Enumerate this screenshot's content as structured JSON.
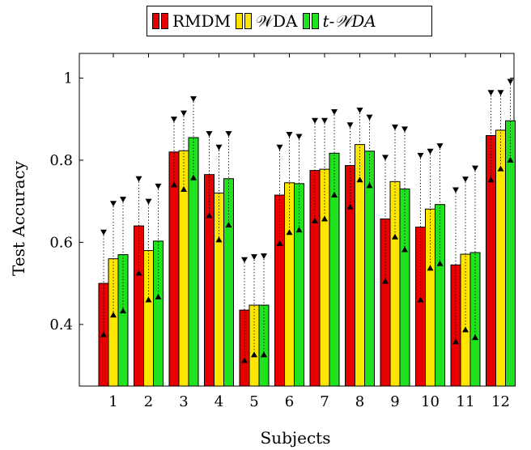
{
  "chart_data": {
    "type": "bar",
    "xlabel": "Subjects",
    "ylabel": "Test Accuracy",
    "categories": [
      "1",
      "2",
      "3",
      "4",
      "5",
      "6",
      "7",
      "8",
      "9",
      "10",
      "11",
      "12"
    ],
    "ylim": [
      0.25,
      1.06
    ],
    "yticks": [
      0.4,
      0.6,
      0.8,
      1
    ],
    "ytick_labels": [
      "0.4",
      "0.6",
      "0.8",
      "1"
    ],
    "legend_position": "top-center",
    "series": [
      {
        "name": "RMDM",
        "color": "#e80000",
        "values": [
          0.5,
          0.64,
          0.82,
          0.765,
          0.435,
          0.715,
          0.775,
          0.787,
          0.657,
          0.637,
          0.545,
          0.86
        ],
        "upper": [
          0.625,
          0.755,
          0.9,
          0.865,
          0.558,
          0.832,
          0.897,
          0.886,
          0.807,
          0.812,
          0.728,
          0.965
        ],
        "lower": [
          0.375,
          0.525,
          0.74,
          0.665,
          0.312,
          0.597,
          0.652,
          0.686,
          0.505,
          0.46,
          0.358,
          0.752
        ]
      },
      {
        "name": "𝒲DA",
        "color": "#ffe600",
        "values": [
          0.56,
          0.58,
          0.823,
          0.72,
          0.447,
          0.745,
          0.778,
          0.838,
          0.748,
          0.681,
          0.571,
          0.873
        ],
        "upper": [
          0.695,
          0.7,
          0.915,
          0.832,
          0.565,
          0.863,
          0.897,
          0.922,
          0.881,
          0.822,
          0.754,
          0.965
        ],
        "lower": [
          0.423,
          0.46,
          0.729,
          0.606,
          0.326,
          0.624,
          0.657,
          0.752,
          0.613,
          0.537,
          0.387,
          0.779
        ]
      },
      {
        "name": "t-𝒲DA",
        "color": "#1fe31f",
        "values": [
          0.57,
          0.603,
          0.855,
          0.755,
          0.447,
          0.743,
          0.817,
          0.822,
          0.73,
          0.692,
          0.575,
          0.896
        ],
        "upper": [
          0.705,
          0.737,
          0.95,
          0.865,
          0.567,
          0.858,
          0.918,
          0.905,
          0.876,
          0.835,
          0.781,
          0.992
        ],
        "lower": [
          0.433,
          0.467,
          0.757,
          0.642,
          0.326,
          0.63,
          0.715,
          0.738,
          0.582,
          0.548,
          0.368,
          0.8
        ]
      }
    ]
  },
  "legend": {
    "rmdm_label": "RMDM",
    "wda_label": "𝒲DA",
    "twda_label": "t-𝒲DA"
  }
}
